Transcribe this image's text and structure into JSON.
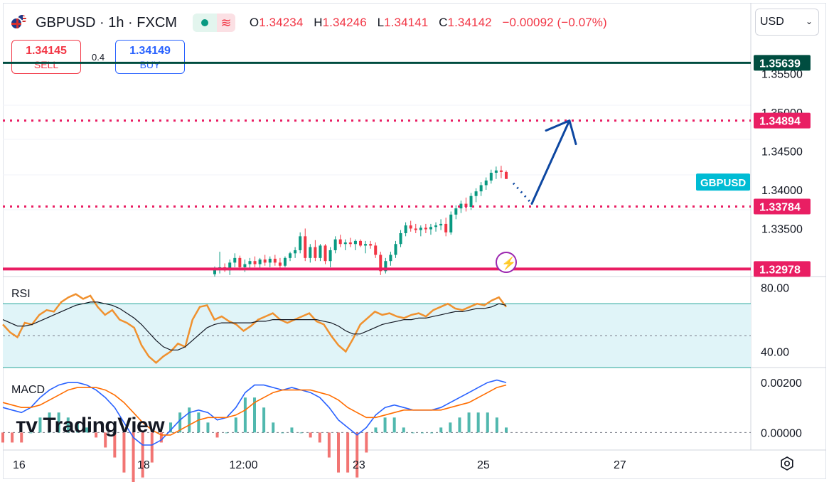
{
  "header": {
    "symbol": "GBPUSD · 1h · FXCM",
    "open_label": "O",
    "open": "1.34234",
    "high_label": "H",
    "high": "1.34246",
    "low_label": "L",
    "low": "1.34141",
    "close_label": "C",
    "close": "1.34142",
    "change": "−0.00092 (−0.07%)"
  },
  "trade": {
    "sell_price": "1.34145",
    "sell_label": "SELL",
    "buy_price": "1.34149",
    "buy_label": "BUY",
    "spread": "0.4"
  },
  "currency_select": "USD",
  "logo_text": "TradingView",
  "colors": {
    "up": "#089981",
    "down": "#f23645",
    "level_magenta": "#e91e63",
    "level_dark": "#004d40",
    "arrow": "#0d47a1",
    "rsi": "#f0912f",
    "macd": "#2962ff",
    "signal": "#ff6d00",
    "symbol_label": "#00bcd4"
  },
  "chart_data": [
    {
      "type": "candlestick",
      "title": "GBPUSD · 1h · FXCM",
      "ylim": [
        1.3288,
        1.359
      ],
      "y_ticks": [
        "1.35500",
        "1.35000",
        "1.34500",
        "1.34000",
        "1.33500"
      ],
      "x_ticks": [
        "16",
        "18",
        "12:00",
        "23",
        "25",
        "27"
      ],
      "symbol_label": "GBPUSD",
      "levels": [
        {
          "value": 1.35639,
          "label": "1.35639",
          "style": "solid",
          "color": "#004d40"
        },
        {
          "value": 1.34894,
          "label": "1.34894",
          "style": "dotted",
          "color": "#e91e63"
        },
        {
          "value": 1.33784,
          "label": "1.33784",
          "style": "dotted",
          "color": "#e91e63"
        },
        {
          "value": 1.32978,
          "label": "1.32978",
          "style": "solid",
          "color": "#e91e63"
        }
      ],
      "candles": [
        [
          1.3291,
          1.3301,
          1.3288,
          1.3298
        ],
        [
          1.3298,
          1.332,
          1.3292,
          1.33
        ],
        [
          1.33,
          1.3305,
          1.3294,
          1.3296
        ],
        [
          1.3296,
          1.331,
          1.329,
          1.3306
        ],
        [
          1.3306,
          1.3318,
          1.33,
          1.3312
        ],
        [
          1.3312,
          1.3315,
          1.3296,
          1.33
        ],
        [
          1.33,
          1.331,
          1.3294,
          1.3304
        ],
        [
          1.3304,
          1.3312,
          1.3298,
          1.3308
        ],
        [
          1.3308,
          1.3314,
          1.33,
          1.3304
        ],
        [
          1.3304,
          1.3312,
          1.3298,
          1.331
        ],
        [
          1.331,
          1.3316,
          1.3302,
          1.3306
        ],
        [
          1.3306,
          1.3314,
          1.33,
          1.3311
        ],
        [
          1.3311,
          1.3316,
          1.3302,
          1.3306
        ],
        [
          1.3306,
          1.3312,
          1.3298,
          1.3302
        ],
        [
          1.3302,
          1.3314,
          1.33,
          1.3312
        ],
        [
          1.3312,
          1.332,
          1.3308,
          1.3318
        ],
        [
          1.3318,
          1.3326,
          1.3312,
          1.3322
        ],
        [
          1.3322,
          1.3345,
          1.3318,
          1.334
        ],
        [
          1.334,
          1.335,
          1.3308,
          1.3312
        ],
        [
          1.3312,
          1.333,
          1.3306,
          1.3326
        ],
        [
          1.3326,
          1.3335,
          1.3308,
          1.3312
        ],
        [
          1.3312,
          1.333,
          1.3308,
          1.3328
        ],
        [
          1.3328,
          1.333,
          1.3304,
          1.3308
        ],
        [
          1.3308,
          1.3326,
          1.33,
          1.3322
        ],
        [
          1.3322,
          1.334,
          1.3318,
          1.3336
        ],
        [
          1.3336,
          1.3342,
          1.3326,
          1.333
        ],
        [
          1.333,
          1.3336,
          1.3322,
          1.3332
        ],
        [
          1.3332,
          1.3338,
          1.3326,
          1.333
        ],
        [
          1.333,
          1.3336,
          1.3322,
          1.3334
        ],
        [
          1.3334,
          1.3336,
          1.3326,
          1.3328
        ],
        [
          1.3328,
          1.3334,
          1.3318,
          1.333
        ],
        [
          1.333,
          1.3334,
          1.3324,
          1.3328
        ],
        [
          1.3328,
          1.3332,
          1.3312,
          1.3316
        ],
        [
          1.3316,
          1.332,
          1.329,
          1.3295
        ],
        [
          1.3295,
          1.3312,
          1.3292,
          1.3308
        ],
        [
          1.3308,
          1.332,
          1.3302,
          1.3316
        ],
        [
          1.3316,
          1.3334,
          1.3312,
          1.333
        ],
        [
          1.333,
          1.3348,
          1.3326,
          1.3344
        ],
        [
          1.3344,
          1.3358,
          1.334,
          1.3354
        ],
        [
          1.3354,
          1.336,
          1.3346,
          1.335
        ],
        [
          1.335,
          1.3356,
          1.3344,
          1.3348
        ],
        [
          1.3348,
          1.3354,
          1.334,
          1.3351
        ],
        [
          1.3351,
          1.3356,
          1.3344,
          1.3349
        ],
        [
          1.3349,
          1.3356,
          1.3342,
          1.3352
        ],
        [
          1.3352,
          1.3358,
          1.3346,
          1.3354
        ],
        [
          1.3354,
          1.3362,
          1.3348,
          1.3356
        ],
        [
          1.3356,
          1.3364,
          1.334,
          1.3345
        ],
        [
          1.3345,
          1.3372,
          1.3342,
          1.3368
        ],
        [
          1.3368,
          1.338,
          1.3362,
          1.3376
        ],
        [
          1.3376,
          1.3386,
          1.337,
          1.3382
        ],
        [
          1.3382,
          1.339,
          1.3372,
          1.3378
        ],
        [
          1.3378,
          1.3396,
          1.3374,
          1.3392
        ],
        [
          1.3392,
          1.3402,
          1.3384,
          1.3398
        ],
        [
          1.3398,
          1.341,
          1.3392,
          1.3406
        ],
        [
          1.3406,
          1.3416,
          1.34,
          1.3412
        ],
        [
          1.3412,
          1.3426,
          1.3408,
          1.3422
        ],
        [
          1.3422,
          1.343,
          1.3414,
          1.3425
        ],
        [
          1.3425,
          1.3431,
          1.3415,
          1.3423
        ],
        [
          1.3423,
          1.3425,
          1.3414,
          1.3414
        ]
      ],
      "projection": {
        "dotted_end": 1.33784,
        "arrow_peak": 1.34894
      }
    },
    {
      "type": "line",
      "title": "RSI",
      "ylim": [
        30,
        87
      ],
      "y_ticks": [
        "80.00",
        "40.00"
      ],
      "band": [
        70,
        30
      ],
      "series": [
        {
          "name": "RSI",
          "values": [
            57,
            52,
            49,
            58,
            57,
            63,
            66,
            65,
            71,
            74,
            76,
            73,
            75,
            68,
            63,
            66,
            60,
            58,
            55,
            44,
            37,
            33,
            37,
            40,
            45,
            43,
            60,
            68,
            69,
            60,
            62,
            59,
            57,
            53,
            56,
            60,
            62,
            64,
            60,
            58,
            60,
            62,
            64,
            59,
            57,
            50,
            44,
            40,
            48,
            57,
            61,
            65,
            63,
            64,
            62,
            61,
            63,
            64,
            62,
            66,
            68,
            70,
            67,
            66,
            68,
            70,
            69,
            72,
            74,
            68
          ]
        },
        {
          "name": "MA",
          "values": [
            60,
            58,
            56,
            56,
            57,
            59,
            61,
            63,
            65,
            67,
            69,
            70,
            71,
            71,
            70,
            69,
            67,
            64,
            61,
            57,
            52,
            47,
            43,
            41,
            41,
            43,
            47,
            51,
            55,
            57,
            58,
            58,
            58,
            58,
            58,
            59,
            59,
            60,
            60,
            60,
            60,
            60,
            60,
            60,
            59,
            58,
            56,
            53,
            51,
            51,
            53,
            55,
            57,
            58,
            59,
            60,
            60,
            61,
            61,
            62,
            63,
            64,
            65,
            65,
            66,
            67,
            67,
            68,
            70,
            69
          ]
        }
      ]
    },
    {
      "type": "line",
      "title": "MACD",
      "ylim": [
        -0.0007,
        0.0026
      ],
      "y_ticks": [
        "0.00200",
        "0.00000"
      ],
      "series": [
        {
          "name": "MACD",
          "values": [
            0.001,
            0.0009,
            0.0008,
            0.001,
            0.0014,
            0.0017,
            0.0019,
            0.002,
            0.002,
            0.0019,
            0.0017,
            0.0014,
            0.001,
            0.0004,
            -0.0002,
            -0.0005,
            -0.0005,
            -0.0003,
            0.0001,
            0.0005,
            0.0008,
            0.0009,
            0.0008,
            0.0005,
            0.0006,
            0.001,
            0.0016,
            0.0019,
            0.0019,
            0.0018,
            0.0017,
            0.0018,
            0.0017,
            0.0016,
            0.0014,
            0.001,
            0.0005,
            0.0002,
            -0.0001,
            0.0002,
            0.0007,
            0.001,
            0.0011,
            0.001,
            0.0009,
            0.0009,
            0.0009,
            0.001,
            0.0012,
            0.0014,
            0.0016,
            0.0018,
            0.002,
            0.0021,
            0.002
          ]
        },
        {
          "name": "Signal",
          "values": [
            0.0012,
            0.0011,
            0.001,
            0.001,
            0.0011,
            0.0013,
            0.0015,
            0.0017,
            0.0018,
            0.0018,
            0.0018,
            0.0017,
            0.0015,
            0.0012,
            0.0008,
            0.0004,
            0.0001,
            -0.0001,
            -0.0001,
            0.0001,
            0.0003,
            0.0005,
            0.0006,
            0.0006,
            0.0006,
            0.0007,
            0.0009,
            0.0012,
            0.0014,
            0.0016,
            0.0017,
            0.0017,
            0.0017,
            0.0017,
            0.0016,
            0.0015,
            0.0013,
            0.001,
            0.0008,
            0.0006,
            0.0006,
            0.0007,
            0.0008,
            0.0009,
            0.0009,
            0.0009,
            0.0009,
            0.0009,
            0.001,
            0.0011,
            0.0012,
            0.0014,
            0.0016,
            0.0018,
            0.0019
          ]
        }
      ]
    }
  ]
}
